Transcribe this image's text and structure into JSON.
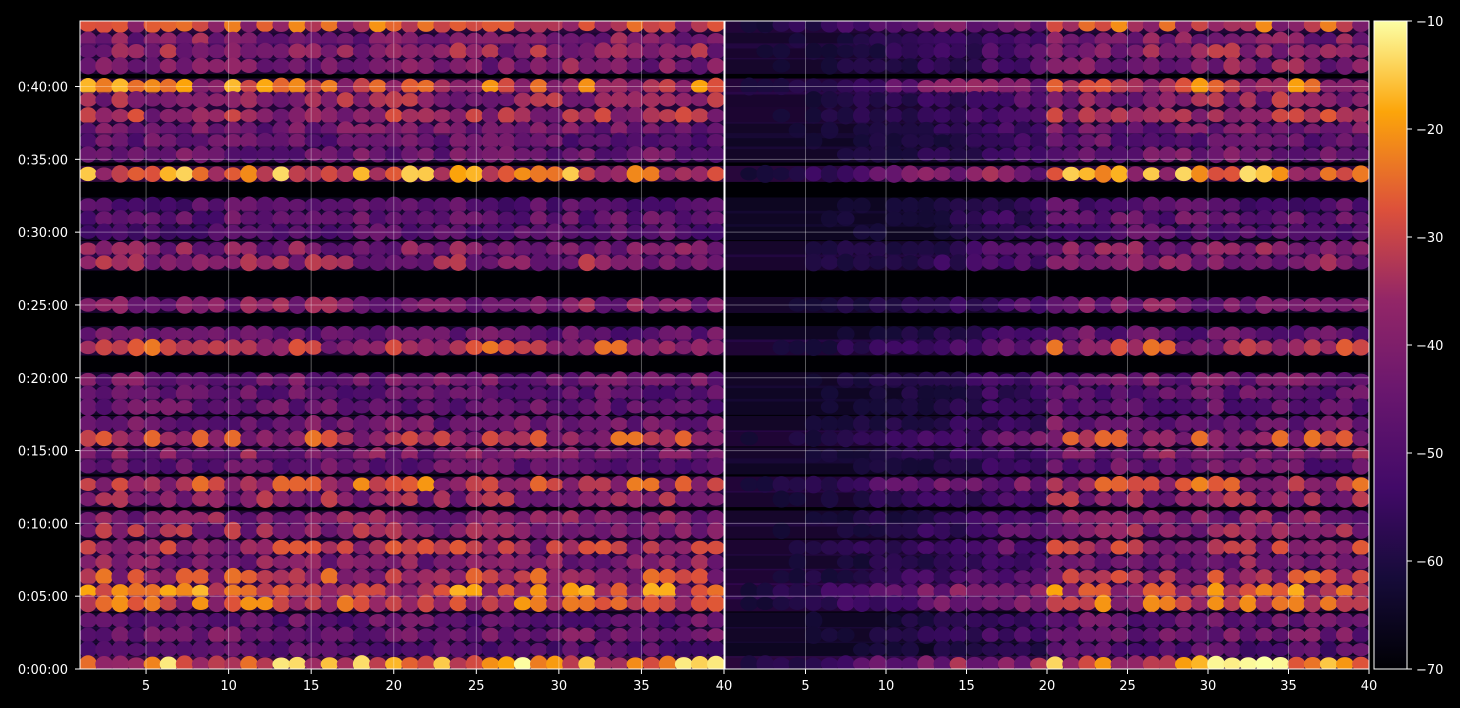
{
  "chart_data": {
    "type": "heatmap",
    "title": "",
    "xlabel": "",
    "ylabel": "",
    "colormap": "inferno",
    "background": "#000000",
    "grid": true,
    "y_ticks": [
      {
        "label": "0:00:00",
        "value": 0
      },
      {
        "label": "0:05:00",
        "value": 300
      },
      {
        "label": "0:10:00",
        "value": 600
      },
      {
        "label": "0:15:00",
        "value": 900
      },
      {
        "label": "0:20:00",
        "value": 1200
      },
      {
        "label": "0:25:00",
        "value": 1500
      },
      {
        "label": "0:30:00",
        "value": 1800
      },
      {
        "label": "0:35:00",
        "value": 2100
      },
      {
        "label": "0:40:00",
        "value": 2400
      }
    ],
    "ylim": [
      0,
      2670
    ],
    "panels": [
      {
        "xlim": [
          1,
          40
        ],
        "x_ticks": [
          "5",
          "10",
          "15",
          "20",
          "25",
          "30",
          "35",
          "40"
        ],
        "x_tick_values": [
          5,
          10,
          15,
          20,
          25,
          30,
          35,
          40
        ]
      },
      {
        "xlim": [
          0,
          40
        ],
        "x_ticks": [
          "5",
          "10",
          "15",
          "20",
          "25",
          "30",
          "35",
          "40"
        ],
        "x_tick_values": [
          5,
          10,
          15,
          20,
          25,
          30,
          35,
          40
        ]
      }
    ],
    "bands": [
      {
        "t": 2655,
        "intensity": 0.75
      },
      {
        "t": 2590,
        "intensity": 0.55
      },
      {
        "t": 2545,
        "intensity": 0.6
      },
      {
        "t": 2485,
        "intensity": 0.55
      },
      {
        "t": 2400,
        "intensity": 0.8
      },
      {
        "t": 2345,
        "intensity": 0.6
      },
      {
        "t": 2280,
        "intensity": 0.65
      },
      {
        "t": 2220,
        "intensity": 0.5
      },
      {
        "t": 2175,
        "intensity": 0.45
      },
      {
        "t": 2120,
        "intensity": 0.5
      },
      {
        "t": 2040,
        "intensity": 0.85
      },
      {
        "t": 1910,
        "intensity": 0.4
      },
      {
        "t": 1855,
        "intensity": 0.45
      },
      {
        "t": 1800,
        "intensity": 0.4
      },
      {
        "t": 1730,
        "intensity": 0.55
      },
      {
        "t": 1675,
        "intensity": 0.6
      },
      {
        "t": 1500,
        "intensity": 0.55
      },
      {
        "t": 1380,
        "intensity": 0.45
      },
      {
        "t": 1325,
        "intensity": 0.7
      },
      {
        "t": 1190,
        "intensity": 0.5
      },
      {
        "t": 1135,
        "intensity": 0.45
      },
      {
        "t": 1080,
        "intensity": 0.45
      },
      {
        "t": 1010,
        "intensity": 0.5
      },
      {
        "t": 950,
        "intensity": 0.7
      },
      {
        "t": 880,
        "intensity": 0.55
      },
      {
        "t": 835,
        "intensity": 0.45
      },
      {
        "t": 760,
        "intensity": 0.75
      },
      {
        "t": 700,
        "intensity": 0.6
      },
      {
        "t": 620,
        "intensity": 0.55
      },
      {
        "t": 570,
        "intensity": 0.6
      },
      {
        "t": 500,
        "intensity": 0.65
      },
      {
        "t": 440,
        "intensity": 0.55
      },
      {
        "t": 380,
        "intensity": 0.7
      },
      {
        "t": 320,
        "intensity": 0.8
      },
      {
        "t": 270,
        "intensity": 0.75
      },
      {
        "t": 200,
        "intensity": 0.45
      },
      {
        "t": 140,
        "intensity": 0.5
      },
      {
        "t": 80,
        "intensity": 0.4
      },
      {
        "t": 20,
        "intensity": 0.9
      }
    ],
    "colorbar": {
      "ticks": [
        {
          "label": "−10",
          "value": -10
        },
        {
          "label": "−20",
          "value": -20
        },
        {
          "label": "−30",
          "value": -30
        },
        {
          "label": "−40",
          "value": -40
        },
        {
          "label": "−50",
          "value": -50
        },
        {
          "label": "−60",
          "value": -60
        },
        {
          "label": "−70",
          "value": -70
        }
      ],
      "vmin": -70,
      "vmax": -10
    }
  }
}
